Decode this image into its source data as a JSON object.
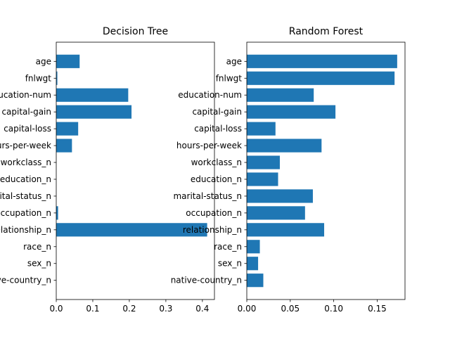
{
  "chart_data": [
    {
      "type": "bar",
      "orientation": "horizontal",
      "title": "Decision Tree",
      "xlabel": "",
      "ylabel": "",
      "categories": [
        "age",
        "fnlwgt",
        "education-num",
        "capital-gain",
        "capital-loss",
        "hours-per-week",
        "workclass_n",
        "education_n",
        "marital-status_n",
        "occupation_n",
        "relationship_n",
        "race_n",
        "sex_n",
        "native-country_n"
      ],
      "values": [
        0.064,
        0.003,
        0.197,
        0.206,
        0.06,
        0.043,
        0.0,
        0.0,
        0.0,
        0.005,
        0.413,
        0.0,
        0.0,
        0.0
      ],
      "xlim": [
        0,
        0.433
      ],
      "xticks": [
        0.0,
        0.1,
        0.2,
        0.3,
        0.4
      ],
      "xtick_labels": [
        "0.0",
        "0.1",
        "0.2",
        "0.3",
        "0.4"
      ],
      "grid": false,
      "bar_color": "#1f77b4"
    },
    {
      "type": "bar",
      "orientation": "horizontal",
      "title": "Random Forest",
      "xlabel": "",
      "ylabel": "",
      "categories": [
        "age",
        "fnlwgt",
        "education-num",
        "capital-gain",
        "capital-loss",
        "hours-per-week",
        "workclass_n",
        "education_n",
        "marital-status_n",
        "occupation_n",
        "relationship_n",
        "race_n",
        "sex_n",
        "native-country_n"
      ],
      "values": [
        0.173,
        0.17,
        0.077,
        0.102,
        0.033,
        0.086,
        0.038,
        0.036,
        0.076,
        0.067,
        0.089,
        0.015,
        0.013,
        0.019
      ],
      "xlim": [
        0,
        0.182
      ],
      "xticks": [
        0.0,
        0.05,
        0.1,
        0.15
      ],
      "xtick_labels": [
        "0.00",
        "0.05",
        "0.10",
        "0.15"
      ],
      "grid": false,
      "bar_color": "#1f77b4"
    }
  ]
}
